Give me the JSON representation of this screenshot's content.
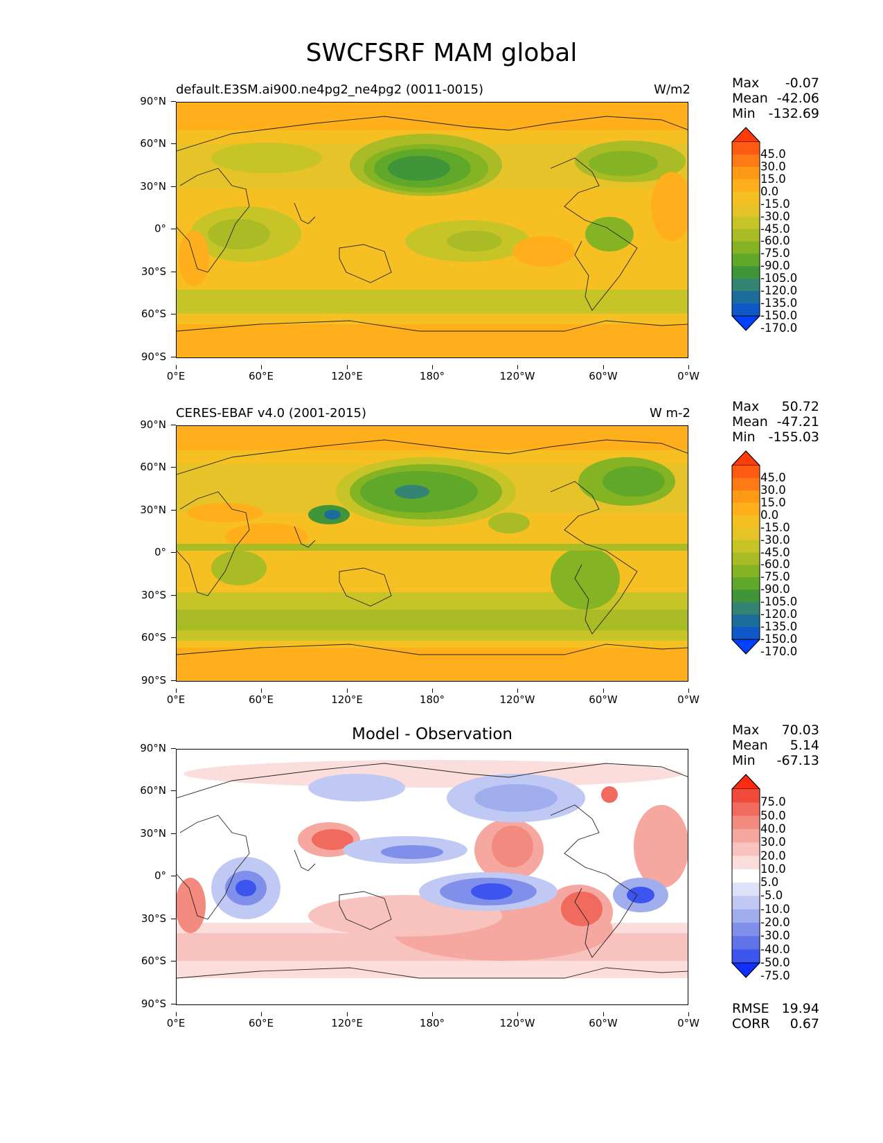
{
  "title": "SWCFSRF MAM global",
  "x_ticks": [
    "0°E",
    "60°E",
    "120°E",
    "180°",
    "120°W",
    "60°W",
    "0°W"
  ],
  "y_ticks": [
    "90°N",
    "60°N",
    "30°N",
    "0°",
    "30°S",
    "60°S",
    "90°S"
  ],
  "panels": [
    {
      "title": "default.E3SM.ai900.ne4pg2_ne4pg2 (0011-0015)",
      "units": "W/m2",
      "stats": {
        "max_label": "Max",
        "max": "-0.07",
        "mean_label": "Mean",
        "mean": "-42.06",
        "min_label": "Min",
        "min": "-132.69"
      },
      "colorbar": {
        "levels": [
          "45.0",
          "30.0",
          "15.0",
          "0.0",
          "-15.0",
          "-30.0",
          "-45.0",
          "-60.0",
          "-75.0",
          "-90.0",
          "-105.0",
          "-120.0",
          "-135.0",
          "-150.0",
          "-170.0"
        ],
        "colors": [
          "#ff3b0a",
          "#ff5a12",
          "#ff7a14",
          "#ff9a16",
          "#ffae1c",
          "#f6bf22",
          "#e6c328",
          "#c7c428",
          "#a9bb25",
          "#84b424",
          "#5fa829",
          "#3f9538",
          "#338473",
          "#1c6d9c",
          "#0f58c8",
          "#0040ff"
        ]
      }
    },
    {
      "title": "CERES-EBAF v4.0 (2001-2015)",
      "units": "W m-2",
      "stats": {
        "max_label": "Max",
        "max": "50.72",
        "mean_label": "Mean",
        "mean": "-47.21",
        "min_label": "Min",
        "min": "-155.03"
      },
      "colorbar": {
        "levels": [
          "45.0",
          "30.0",
          "15.0",
          "0.0",
          "-15.0",
          "-30.0",
          "-45.0",
          "-60.0",
          "-75.0",
          "-90.0",
          "-105.0",
          "-120.0",
          "-135.0",
          "-150.0",
          "-170.0"
        ],
        "colors": [
          "#ff3b0a",
          "#ff5a12",
          "#ff7a14",
          "#ff9a16",
          "#ffae1c",
          "#f6bf22",
          "#e6c328",
          "#c7c428",
          "#a9bb25",
          "#84b424",
          "#5fa829",
          "#3f9538",
          "#338473",
          "#1c6d9c",
          "#0f58c8",
          "#0040ff"
        ]
      }
    },
    {
      "title": "Model - Observation",
      "units": "",
      "stats": {
        "max_label": "Max",
        "max": "70.03",
        "mean_label": "Mean",
        "mean": "5.14",
        "min_label": "Min",
        "min": "-67.13"
      },
      "colorbar": {
        "levels": [
          "75.0",
          "50.0",
          "40.0",
          "30.0",
          "20.0",
          "10.0",
          "5.0",
          "-5.0",
          "-10.0",
          "-20.0",
          "-30.0",
          "-40.0",
          "-50.0",
          "-75.0"
        ],
        "colors": [
          "#ff2a10",
          "#f24a3a",
          "#f06a5e",
          "#f28a80",
          "#f5a7a0",
          "#f8c3be",
          "#fbdedb",
          "#ffffff",
          "#dde2f8",
          "#c0c9f3",
          "#a1aeee",
          "#8090ea",
          "#5f72e8",
          "#3b55ee",
          "#0f30ff"
        ]
      },
      "extra": {
        "rmse_label": "RMSE",
        "rmse": "19.94",
        "corr_label": "CORR",
        "corr": "0.67"
      }
    }
  ]
}
